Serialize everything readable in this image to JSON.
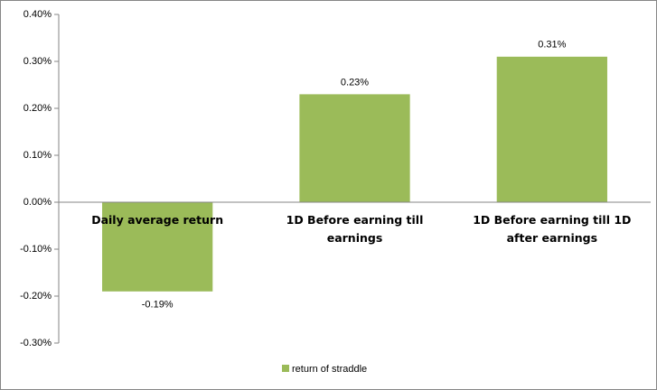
{
  "chart_data": {
    "type": "bar",
    "categories": [
      "Daily average return",
      "1D Before earning till earnings",
      "1D Before earning till 1D after earnings"
    ],
    "series": [
      {
        "name": "return of straddle",
        "color": "#9bbb59",
        "values": [
          -0.19,
          0.23,
          0.31
        ],
        "value_labels": [
          "-0.19%",
          "0.23%",
          "0.31%"
        ]
      }
    ],
    "ylim": [
      -0.3,
      0.4
    ],
    "yticks": [
      {
        "value": -0.3,
        "label": "-0.30%"
      },
      {
        "value": -0.2,
        "label": "-0.20%"
      },
      {
        "value": -0.1,
        "label": "-0.10%"
      },
      {
        "value": 0,
        "label": "0.00%"
      },
      {
        "value": 0.1,
        "label": "0.10%"
      },
      {
        "value": 0.2,
        "label": "0.20%"
      },
      {
        "value": 0.3,
        "label": "0.30%"
      },
      {
        "value": 0.4,
        "label": "0.40%"
      }
    ],
    "grid": false,
    "legend": "bottom"
  }
}
